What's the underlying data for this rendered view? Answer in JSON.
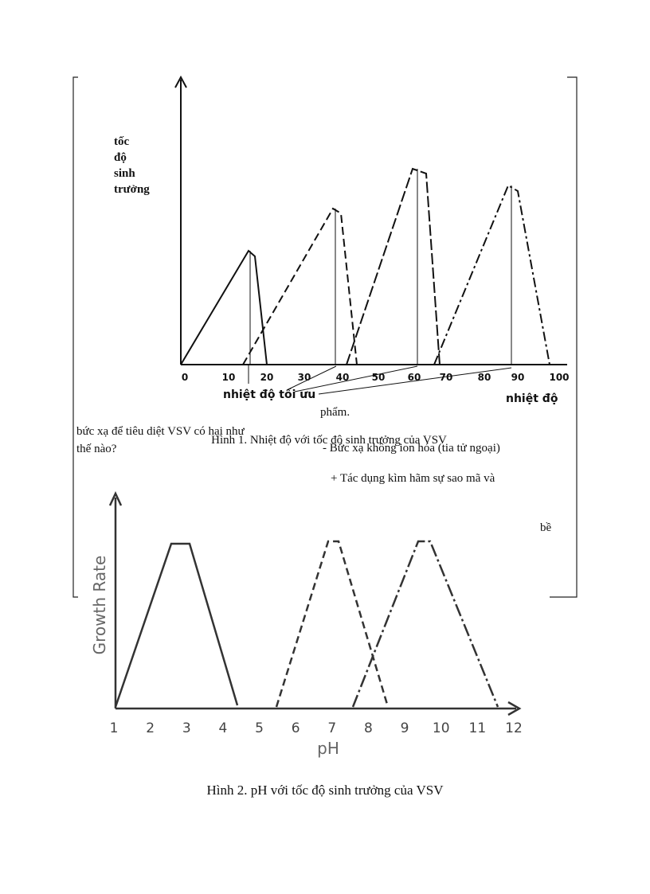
{
  "figure1": {
    "y_label": [
      "tốc",
      "độ",
      "sinh",
      "trưởng"
    ],
    "x_ticks": [
      "0",
      "10",
      "20",
      "30",
      "40",
      "50",
      "60",
      "70",
      "80",
      "90",
      "100"
    ],
    "x_label": "nhiệt độ",
    "annotation": "nhiệt độ tối ưu",
    "caption": "Hình 1. Nhiệt  độ với tốc độ sinh trưởng của VSV"
  },
  "overlay_text": {
    "left": [
      "bức xạ để tiêu  diệt VSV có hại như",
      "thế nào?"
    ],
    "right": [
      "phẩm.",
      "- Bức xạ không ion hóa (tia tử ngoại)",
      "+ Tác dụng kìm hãm sự sao mã và",
      "bề"
    ]
  },
  "figure2": {
    "y_label": "Growth Rate",
    "x_ticks": [
      "1",
      "2",
      "3",
      "4",
      "5",
      "6",
      "7",
      "8",
      "9",
      "10",
      "11",
      "12"
    ],
    "x_label": "pH",
    "caption": "Hình 2.  pH với tốc độ sinh trưởng của VSV"
  }
}
